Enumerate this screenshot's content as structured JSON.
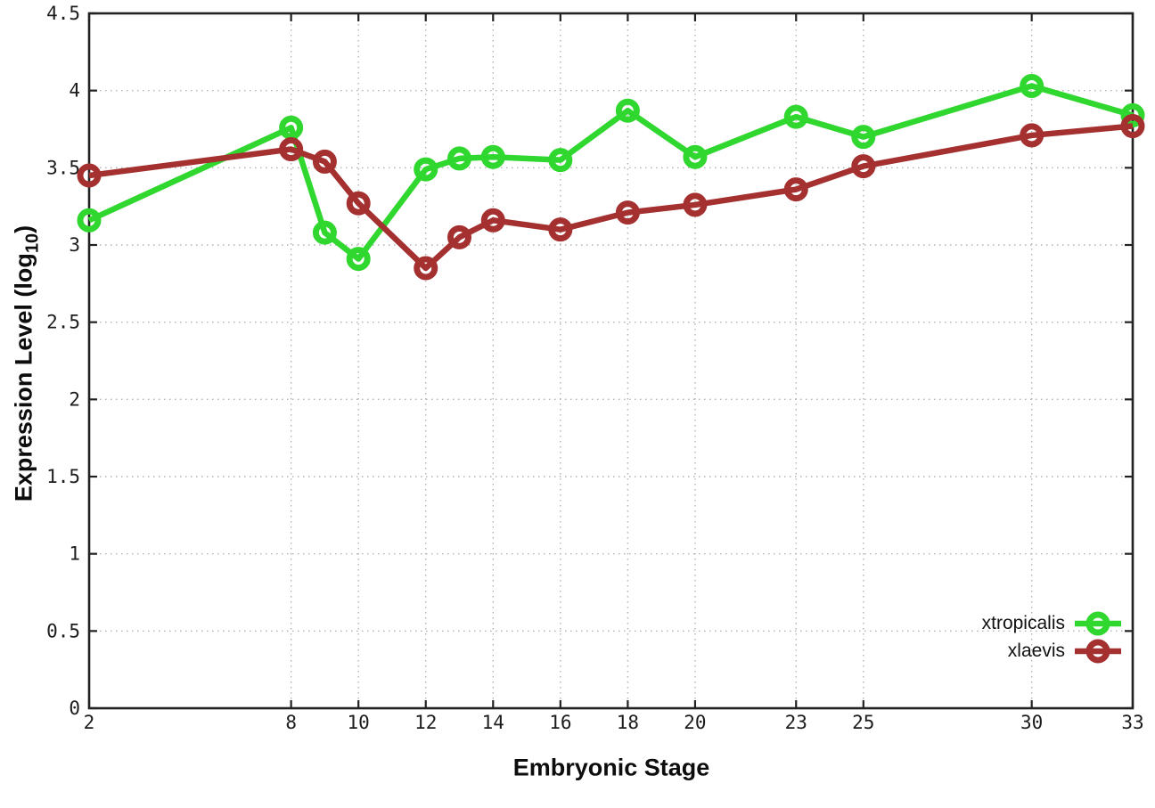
{
  "figure": {
    "background": "#ffffff",
    "xlabel": "Embryonic Stage",
    "ylabel_prefix": "Expression Level (log",
    "ylabel_sub": "10",
    "ylabel_suffix": ")"
  },
  "chart_data": {
    "type": "line",
    "title": "",
    "xlabel": "Embryonic Stage",
    "ylabel": "Expression Level (log10)",
    "x": [
      2,
      8,
      9,
      10,
      12,
      13,
      14,
      16,
      18,
      20,
      23,
      25,
      30,
      33
    ],
    "series": [
      {
        "name": "xtropicalis",
        "color": "#2fd72f",
        "values": [
          3.16,
          3.76,
          3.08,
          2.91,
          3.49,
          3.56,
          3.57,
          3.55,
          3.87,
          3.57,
          3.83,
          3.7,
          4.03,
          3.84
        ]
      },
      {
        "name": "xlaevis",
        "color": "#a43030",
        "values": [
          3.45,
          3.62,
          3.54,
          3.27,
          2.85,
          3.05,
          3.16,
          3.1,
          3.21,
          3.26,
          3.36,
          3.51,
          3.71,
          3.77
        ]
      }
    ],
    "x_ticks": [
      2,
      8,
      10,
      12,
      14,
      16,
      18,
      20,
      23,
      25,
      30,
      33
    ],
    "x_tick_labels": [
      "2",
      "8",
      "10",
      "12",
      "14",
      "16",
      "18",
      "20",
      "23",
      "25",
      "30",
      "33"
    ],
    "y_ticks": [
      0,
      0.5,
      1,
      1.5,
      2,
      2.5,
      3,
      3.5,
      4,
      4.5
    ],
    "y_tick_labels": [
      "0",
      "0.5",
      "1",
      "1.5",
      "2",
      "2.5",
      "3",
      "3.5",
      "4",
      "4.5"
    ],
    "xlim": [
      2,
      33
    ],
    "ylim": [
      0,
      4.5
    ],
    "grid": true,
    "legend_position": "bottom-right",
    "style": {
      "grid_color": "#b2b2b2",
      "axis_color": "#222222",
      "text_color": "#1c1c1c",
      "line_width": 6.5,
      "marker_radius": 10,
      "marker_stroke": 7
    }
  }
}
